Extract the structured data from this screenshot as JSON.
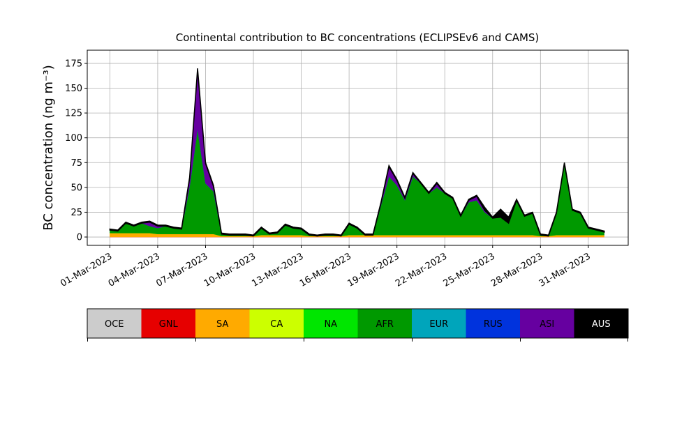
{
  "chart_data": {
    "type": "stacked_area",
    "title": "Continental contribution to BC concentrations (ECLIPSEv6 and CAMS)",
    "y_label": "BC concentration (ng m⁻³)",
    "x": [
      "2023-03-01T00:00",
      "2023-03-01T12:00",
      "2023-03-02T00:00",
      "2023-03-02T12:00",
      "2023-03-03T00:00",
      "2023-03-03T12:00",
      "2023-03-04T00:00",
      "2023-03-04T12:00",
      "2023-03-05T00:00",
      "2023-03-05T12:00",
      "2023-03-06T00:00",
      "2023-03-06T12:00",
      "2023-03-07T00:00",
      "2023-03-07T12:00",
      "2023-03-08T00:00",
      "2023-03-08T12:00",
      "2023-03-09T00:00",
      "2023-03-09T12:00",
      "2023-03-10T00:00",
      "2023-03-10T12:00",
      "2023-03-11T00:00",
      "2023-03-11T12:00",
      "2023-03-12T00:00",
      "2023-03-12T12:00",
      "2023-03-13T00:00",
      "2023-03-13T12:00",
      "2023-03-14T00:00",
      "2023-03-14T12:00",
      "2023-03-15T00:00",
      "2023-03-15T12:00",
      "2023-03-16T00:00",
      "2023-03-16T12:00",
      "2023-03-17T00:00",
      "2023-03-17T12:00",
      "2023-03-18T00:00",
      "2023-03-18T12:00",
      "2023-03-19T00:00",
      "2023-03-19T12:00",
      "2023-03-20T00:00",
      "2023-03-20T12:00",
      "2023-03-21T00:00",
      "2023-03-21T12:00",
      "2023-03-22T00:00",
      "2023-03-22T12:00",
      "2023-03-23T00:00",
      "2023-03-23T12:00",
      "2023-03-24T00:00",
      "2023-03-24T12:00",
      "2023-03-25T00:00",
      "2023-03-25T12:00",
      "2023-03-26T00:00",
      "2023-03-26T12:00",
      "2023-03-27T00:00",
      "2023-03-27T12:00",
      "2023-03-28T00:00",
      "2023-03-28T12:00",
      "2023-03-29T00:00",
      "2023-03-29T12:00",
      "2023-03-30T00:00",
      "2023-03-30T12:00",
      "2023-03-31T00:00",
      "2023-03-31T12:00",
      "2023-04-01T00:00"
    ],
    "series": [
      {
        "name": "OCE",
        "color": "#cccccc",
        "values": [
          0,
          0,
          0,
          0,
          0,
          0,
          0,
          0,
          0,
          0,
          0,
          0,
          0,
          0,
          0,
          0,
          0,
          0,
          0,
          0,
          0,
          0,
          0,
          0,
          0,
          0,
          0,
          0,
          0,
          0,
          0,
          0,
          0,
          0,
          0,
          0,
          0,
          0,
          0,
          0,
          0,
          0,
          0,
          0,
          0,
          0,
          0,
          0,
          0,
          0,
          0,
          0,
          0,
          0,
          0,
          0,
          0,
          0,
          0,
          0,
          0,
          0,
          0
        ]
      },
      {
        "name": "GNL",
        "color": "#e60000",
        "values": [
          0,
          0,
          0,
          0,
          0,
          0,
          0,
          0,
          0,
          0,
          0,
          0,
          0,
          0,
          0,
          0,
          0,
          0,
          0,
          0,
          0,
          0,
          0,
          0,
          0,
          0,
          0,
          0,
          0,
          0,
          0,
          0,
          0,
          0,
          0,
          0,
          0,
          0,
          0,
          0,
          0,
          0,
          0,
          0,
          0,
          0,
          0,
          0,
          0,
          0,
          0,
          0,
          0,
          0,
          0,
          0,
          0,
          0,
          0,
          0,
          0,
          0,
          0
        ]
      },
      {
        "name": "SA",
        "color": "#ffaa00",
        "values": [
          4,
          4,
          4,
          4,
          4,
          4,
          3,
          3,
          3,
          3,
          3,
          3,
          3,
          3,
          1,
          1,
          1,
          1,
          1,
          2,
          2,
          2,
          2,
          2,
          2,
          1,
          1,
          1,
          1,
          1,
          2,
          2,
          2,
          2,
          2,
          2,
          2,
          2,
          2,
          2,
          2,
          2,
          2,
          2,
          2,
          2,
          2,
          2,
          2,
          2,
          2,
          2,
          2,
          2,
          1,
          1,
          2,
          2,
          2,
          2,
          2,
          2,
          2
        ]
      },
      {
        "name": "CA",
        "color": "#ccff00",
        "values": [
          0,
          0,
          0,
          0,
          0,
          0,
          0,
          0,
          0,
          0,
          0,
          0,
          0,
          0,
          0,
          0,
          0,
          0,
          0,
          0,
          0,
          0,
          0,
          0,
          0,
          0,
          0,
          0,
          0,
          0,
          0,
          0,
          0,
          0,
          0,
          0,
          0,
          0,
          0,
          0,
          0,
          0,
          0,
          0,
          0,
          0,
          0,
          0,
          0,
          0,
          0,
          0,
          0,
          0,
          0,
          0,
          0,
          0,
          0,
          0,
          0,
          0,
          0
        ]
      },
      {
        "name": "NA",
        "color": "#00e600",
        "values": [
          0,
          0,
          0,
          0,
          0,
          0,
          0,
          0,
          0,
          0,
          0,
          0,
          0,
          0,
          0,
          0,
          0,
          0,
          0,
          0,
          0,
          0,
          0,
          0,
          0,
          0,
          0,
          0,
          0,
          0,
          0,
          0,
          0,
          0,
          0,
          0,
          0,
          0,
          0,
          0,
          0,
          0,
          0,
          0,
          0,
          0,
          0,
          0,
          0,
          0,
          0,
          0,
          0,
          0,
          0,
          0,
          0,
          0,
          0,
          0,
          0,
          0,
          0
        ]
      },
      {
        "name": "AFR",
        "color": "#009900",
        "values": [
          3,
          2,
          10,
          7,
          10,
          7,
          6,
          8,
          6,
          5,
          48,
          106,
          51,
          43,
          2,
          1,
          1,
          1,
          0,
          7,
          1,
          2,
          10,
          7,
          6,
          1,
          0,
          1,
          1,
          0,
          11,
          7,
          0,
          0,
          30,
          59,
          50,
          35,
          59,
          52,
          42,
          48,
          42,
          37,
          19,
          33,
          35,
          23,
          17,
          18,
          12,
          35,
          19,
          22,
          1,
          0,
          22,
          72,
          25,
          22,
          7,
          5,
          3
        ]
      },
      {
        "name": "EUR",
        "color": "#00a5bb",
        "values": [
          0,
          0,
          0,
          0,
          0,
          0,
          0,
          0,
          0,
          0,
          0,
          0,
          0,
          0,
          0,
          0,
          0,
          0,
          0,
          0,
          0,
          0,
          0,
          0,
          0,
          0,
          0,
          0,
          0,
          0,
          0,
          0,
          0,
          0,
          0,
          0,
          0,
          0,
          0,
          0,
          0,
          0,
          0,
          0,
          0,
          0,
          0,
          0,
          0,
          0,
          0,
          0,
          0,
          0,
          0,
          0,
          0,
          0,
          0,
          0,
          0,
          0,
          0
        ]
      },
      {
        "name": "RUS",
        "color": "#0033dd",
        "values": [
          0,
          0,
          0,
          0,
          0,
          0,
          0,
          0,
          0,
          0,
          0,
          0,
          0,
          0,
          0,
          0,
          0,
          0,
          0,
          0,
          0,
          0,
          0,
          0,
          0,
          0,
          0,
          0,
          0,
          0,
          0,
          0,
          0,
          0,
          0,
          0,
          0,
          0,
          0,
          0,
          0,
          0,
          0,
          0,
          0,
          0,
          0,
          0,
          0,
          0,
          0,
          0,
          0,
          0,
          0,
          0,
          0,
          0,
          0,
          0,
          0,
          0,
          0
        ]
      },
      {
        "name": "ASI",
        "color": "#6600a0",
        "values": [
          0,
          0,
          0,
          0,
          0,
          4,
          2,
          0,
          0,
          0,
          8,
          60,
          20,
          5,
          0,
          0,
          0,
          0,
          0,
          0,
          0,
          0,
          0,
          0,
          0,
          0,
          0,
          0,
          0,
          0,
          0,
          0,
          0,
          0,
          2,
          10,
          5,
          2,
          3,
          0,
          0,
          4,
          0,
          0,
          0,
          2,
          4,
          2,
          0,
          0,
          0,
          0,
          0,
          0,
          0,
          0,
          0,
          0,
          0,
          0,
          0,
          0,
          0
        ]
      },
      {
        "name": "AUS",
        "color": "#000000",
        "values": [
          1,
          1,
          1,
          1,
          1,
          1,
          1,
          1,
          1,
          1,
          1,
          1,
          1,
          1,
          1,
          1,
          1,
          1,
          1,
          1,
          1,
          1,
          1,
          1,
          1,
          1,
          1,
          1,
          1,
          1,
          1,
          1,
          1,
          1,
          1,
          1,
          1,
          1,
          1,
          1,
          1,
          1,
          1,
          1,
          1,
          1,
          1,
          3,
          1,
          8,
          6,
          1,
          1,
          1,
          1,
          1,
          1,
          1,
          1,
          1,
          1,
          1,
          1
        ]
      }
    ],
    "xlim": [
      "2023-02-27T14:00",
      "2023-04-02T12:00"
    ],
    "xticks": [
      {
        "value": "2023-03-01T00:00",
        "label": "01-Mar-2023"
      },
      {
        "value": "2023-03-04T00:00",
        "label": "04-Mar-2023"
      },
      {
        "value": "2023-03-07T00:00",
        "label": "07-Mar-2023"
      },
      {
        "value": "2023-03-10T00:00",
        "label": "10-Mar-2023"
      },
      {
        "value": "2023-03-13T00:00",
        "label": "13-Mar-2023"
      },
      {
        "value": "2023-03-16T00:00",
        "label": "16-Mar-2023"
      },
      {
        "value": "2023-03-19T00:00",
        "label": "19-Mar-2023"
      },
      {
        "value": "2023-03-22T00:00",
        "label": "22-Mar-2023"
      },
      {
        "value": "2023-03-25T00:00",
        "label": "25-Mar-2023"
      },
      {
        "value": "2023-03-28T00:00",
        "label": "28-Mar-2023"
      },
      {
        "value": "2023-03-31T00:00",
        "label": "31-Mar-2023"
      }
    ],
    "ylim": [
      -8.4,
      188.3
    ],
    "yticks": [
      0,
      25,
      50,
      75,
      100,
      125,
      150,
      175
    ],
    "grid": true
  }
}
